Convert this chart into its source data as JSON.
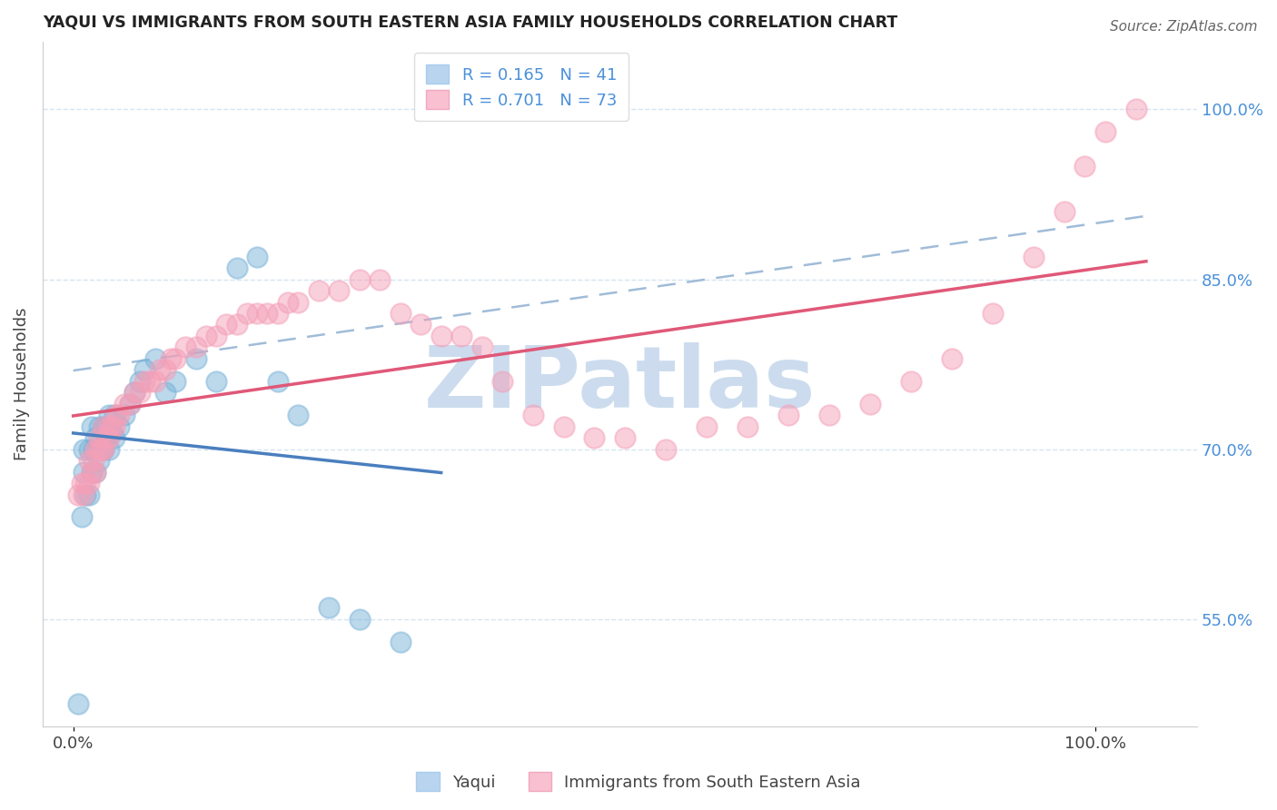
{
  "title": "YAQUI VS IMMIGRANTS FROM SOUTH EASTERN ASIA FAMILY HOUSEHOLDS CORRELATION CHART",
  "source": "Source: ZipAtlas.com",
  "ylabel": "Family Households",
  "right_yticks": [
    0.55,
    0.7,
    0.85,
    1.0
  ],
  "right_yticklabels": [
    "55.0%",
    "70.0%",
    "85.0%",
    "100.0%"
  ],
  "xticks": [
    0.0,
    1.0
  ],
  "xticklabels": [
    "0.0%",
    "100.0%"
  ],
  "xlim": [
    -0.03,
    1.1
  ],
  "ylim": [
    0.455,
    1.06
  ],
  "legend_entries": [
    {
      "label": "R = 0.165   N = 41"
    },
    {
      "label": "R = 0.701   N = 73"
    }
  ],
  "series1_color": "#7ab3d9",
  "series2_color": "#f4a0b8",
  "line1_color": "#4a7fbf",
  "line2_color": "#e05878",
  "dashed_color": "#a0bcd8",
  "legend1_color": "#b8d4ee",
  "legend2_color": "#f8c0d0",
  "watermark_text": "ZIPatlas",
  "watermark_color": "#ccdcee",
  "text_color": "#4a90d9",
  "grid_color": "#d5e5f0",
  "yaqui_x": [
    0.005,
    0.008,
    0.01,
    0.01,
    0.012,
    0.015,
    0.015,
    0.018,
    0.018,
    0.02,
    0.022,
    0.022,
    0.025,
    0.025,
    0.028,
    0.03,
    0.03,
    0.032,
    0.035,
    0.035,
    0.038,
    0.04,
    0.04,
    0.045,
    0.05,
    0.055,
    0.06,
    0.065,
    0.07,
    0.08,
    0.09,
    0.1,
    0.12,
    0.14,
    0.16,
    0.18,
    0.2,
    0.22,
    0.25,
    0.28,
    0.32
  ],
  "yaqui_y": [
    0.475,
    0.64,
    0.68,
    0.7,
    0.66,
    0.66,
    0.7,
    0.68,
    0.72,
    0.7,
    0.68,
    0.71,
    0.69,
    0.72,
    0.7,
    0.7,
    0.72,
    0.71,
    0.7,
    0.73,
    0.715,
    0.71,
    0.73,
    0.72,
    0.73,
    0.74,
    0.75,
    0.76,
    0.77,
    0.78,
    0.75,
    0.76,
    0.78,
    0.76,
    0.86,
    0.87,
    0.76,
    0.73,
    0.56,
    0.55,
    0.53
  ],
  "sea_x": [
    0.005,
    0.008,
    0.01,
    0.012,
    0.015,
    0.015,
    0.018,
    0.02,
    0.022,
    0.022,
    0.025,
    0.025,
    0.028,
    0.03,
    0.03,
    0.032,
    0.035,
    0.035,
    0.038,
    0.04,
    0.042,
    0.045,
    0.05,
    0.055,
    0.06,
    0.065,
    0.07,
    0.075,
    0.08,
    0.085,
    0.09,
    0.095,
    0.1,
    0.11,
    0.12,
    0.13,
    0.14,
    0.15,
    0.16,
    0.17,
    0.18,
    0.19,
    0.2,
    0.21,
    0.22,
    0.24,
    0.26,
    0.28,
    0.3,
    0.32,
    0.34,
    0.36,
    0.38,
    0.4,
    0.42,
    0.45,
    0.48,
    0.51,
    0.54,
    0.58,
    0.62,
    0.66,
    0.7,
    0.74,
    0.78,
    0.82,
    0.86,
    0.9,
    0.94,
    0.97,
    0.99,
    1.01,
    1.04
  ],
  "sea_y": [
    0.66,
    0.67,
    0.66,
    0.67,
    0.67,
    0.69,
    0.68,
    0.69,
    0.7,
    0.68,
    0.7,
    0.71,
    0.7,
    0.7,
    0.72,
    0.71,
    0.71,
    0.72,
    0.72,
    0.72,
    0.73,
    0.73,
    0.74,
    0.74,
    0.75,
    0.75,
    0.76,
    0.76,
    0.76,
    0.77,
    0.77,
    0.78,
    0.78,
    0.79,
    0.79,
    0.8,
    0.8,
    0.81,
    0.81,
    0.82,
    0.82,
    0.82,
    0.82,
    0.83,
    0.83,
    0.84,
    0.84,
    0.85,
    0.85,
    0.82,
    0.81,
    0.8,
    0.8,
    0.79,
    0.76,
    0.73,
    0.72,
    0.71,
    0.71,
    0.7,
    0.72,
    0.72,
    0.73,
    0.73,
    0.74,
    0.76,
    0.78,
    0.82,
    0.87,
    0.91,
    0.95,
    0.98,
    1.0
  ]
}
